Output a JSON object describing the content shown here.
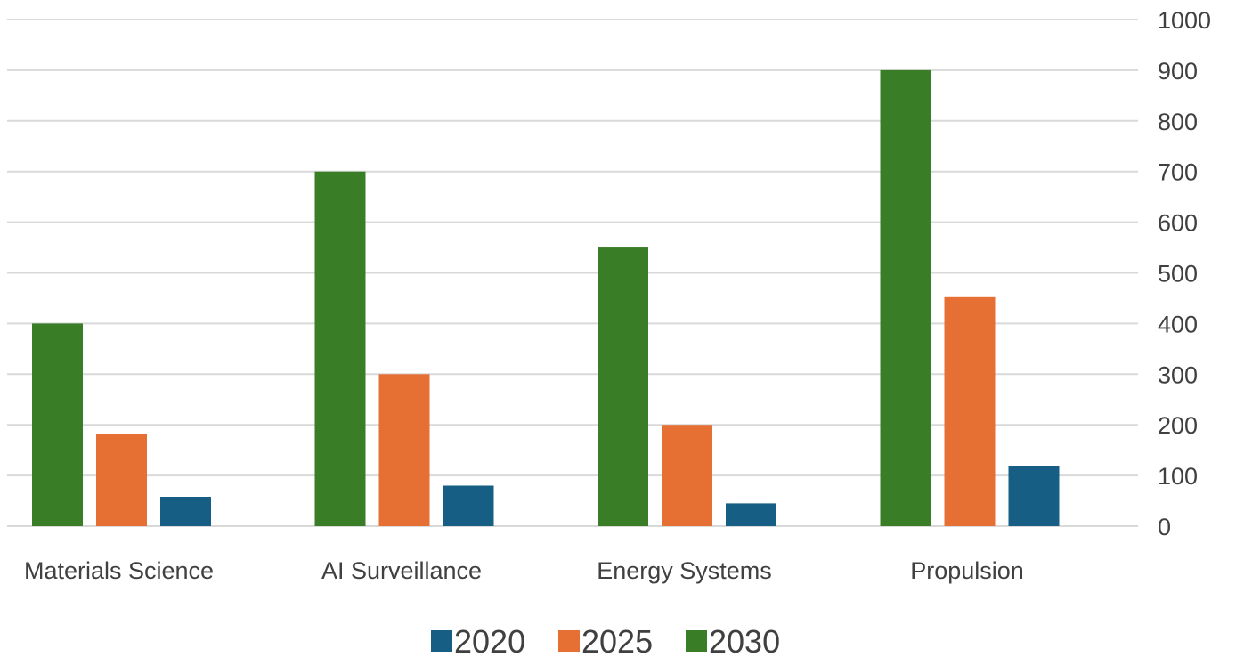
{
  "chart_data": {
    "type": "bar",
    "title": "",
    "xlabel": "",
    "ylabel": "",
    "categories": [
      "Materials Science",
      "AI Surveillance",
      "Energy Systems",
      "Propulsion"
    ],
    "series": [
      {
        "name": "2030",
        "color": "#3a7d27",
        "values": [
          400,
          700,
          550,
          900
        ]
      },
      {
        "name": "2025",
        "color": "#e66f33",
        "values": [
          182,
          300,
          200,
          452
        ]
      },
      {
        "name": "2020",
        "color": "#175e84",
        "values": [
          58,
          80,
          45,
          118
        ]
      }
    ],
    "legend_order": [
      "2020",
      "2025",
      "2030"
    ],
    "ylim": [
      0,
      1000
    ],
    "yticks": [
      0,
      100,
      200,
      300,
      400,
      500,
      600,
      700,
      800,
      900,
      1000
    ],
    "yaxis_side": "right",
    "grid": true,
    "legend_position": "bottom"
  }
}
